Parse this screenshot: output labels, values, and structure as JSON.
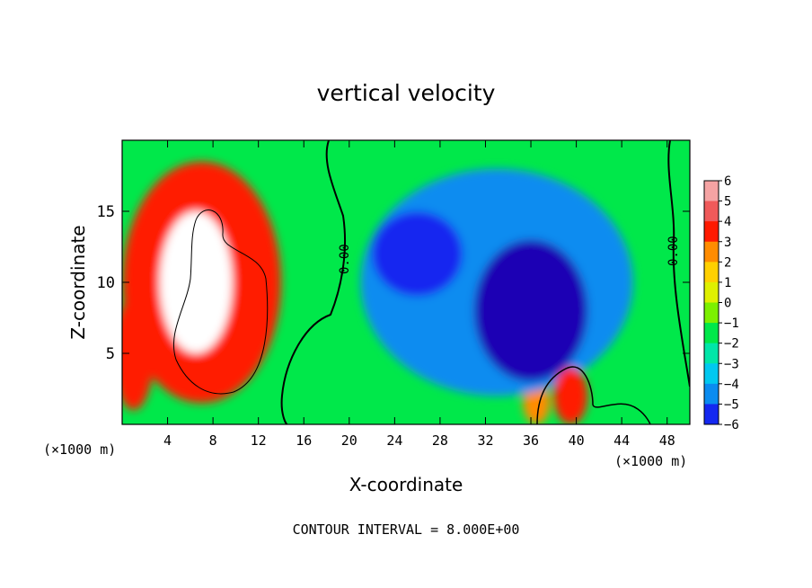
{
  "chart_data": {
    "type": "heatmap",
    "title": "vertical velocity",
    "xlabel": "X-coordinate",
    "ylabel": "Z-coordinate",
    "x_unit_label": "(×1000 m)",
    "x_unit_label_right": "(×1000 m)",
    "footer": "CONTOUR INTERVAL = 8.000E+00",
    "xlim": [
      0,
      50
    ],
    "ylim": [
      0,
      20
    ],
    "x_ticks": [
      4,
      8,
      12,
      16,
      20,
      24,
      28,
      32,
      36,
      40,
      44,
      48
    ],
    "y_ticks": [
      5,
      10,
      15
    ],
    "colorbar": {
      "levels": [
        6,
        5,
        4,
        3,
        2,
        1,
        0,
        -1,
        -2,
        -3,
        -4,
        -5,
        -6
      ],
      "colors": [
        "#f5a3a3",
        "#f05a5a",
        "#ff1a00",
        "#ff8c00",
        "#ffd000",
        "#dff000",
        "#7cf000",
        "#00e84a",
        "#00e6a8",
        "#00c8f0",
        "#0a8cf0",
        "#1428f0",
        "#1e00b4",
        "#6400b4"
      ]
    },
    "contour_labels": [
      "0.00",
      "0.00"
    ],
    "regions": [
      {
        "name": "updraft-core",
        "value": 7,
        "x": 6.5,
        "z": 10,
        "rx": 3.2,
        "rz": 5.0
      },
      {
        "name": "updraft-halo",
        "value": 4,
        "x": 7,
        "z": 10,
        "rx": 7,
        "rz": 8.5
      },
      {
        "name": "left-edge-up",
        "value": 4,
        "x": 1,
        "z": 5,
        "rx": 1.8,
        "rz": 4
      },
      {
        "name": "downdraft-broad",
        "value": -4,
        "x": 33,
        "z": 10,
        "rx": 12,
        "rz": 8
      },
      {
        "name": "downdraft-strong",
        "value": -6,
        "x": 36,
        "z": 8,
        "rx": 5,
        "rz": 5
      },
      {
        "name": "downdraft-blob",
        "value": -5,
        "x": 26,
        "z": 12,
        "rx": 4,
        "rz": 3
      },
      {
        "name": "low-updraft",
        "value": 4,
        "x": 39.5,
        "z": 2,
        "rx": 1.5,
        "rz": 2
      },
      {
        "name": "low-updraft-2",
        "value": 3,
        "x": 36.5,
        "z": 1.5,
        "rx": 1.2,
        "rz": 1.5
      }
    ]
  }
}
